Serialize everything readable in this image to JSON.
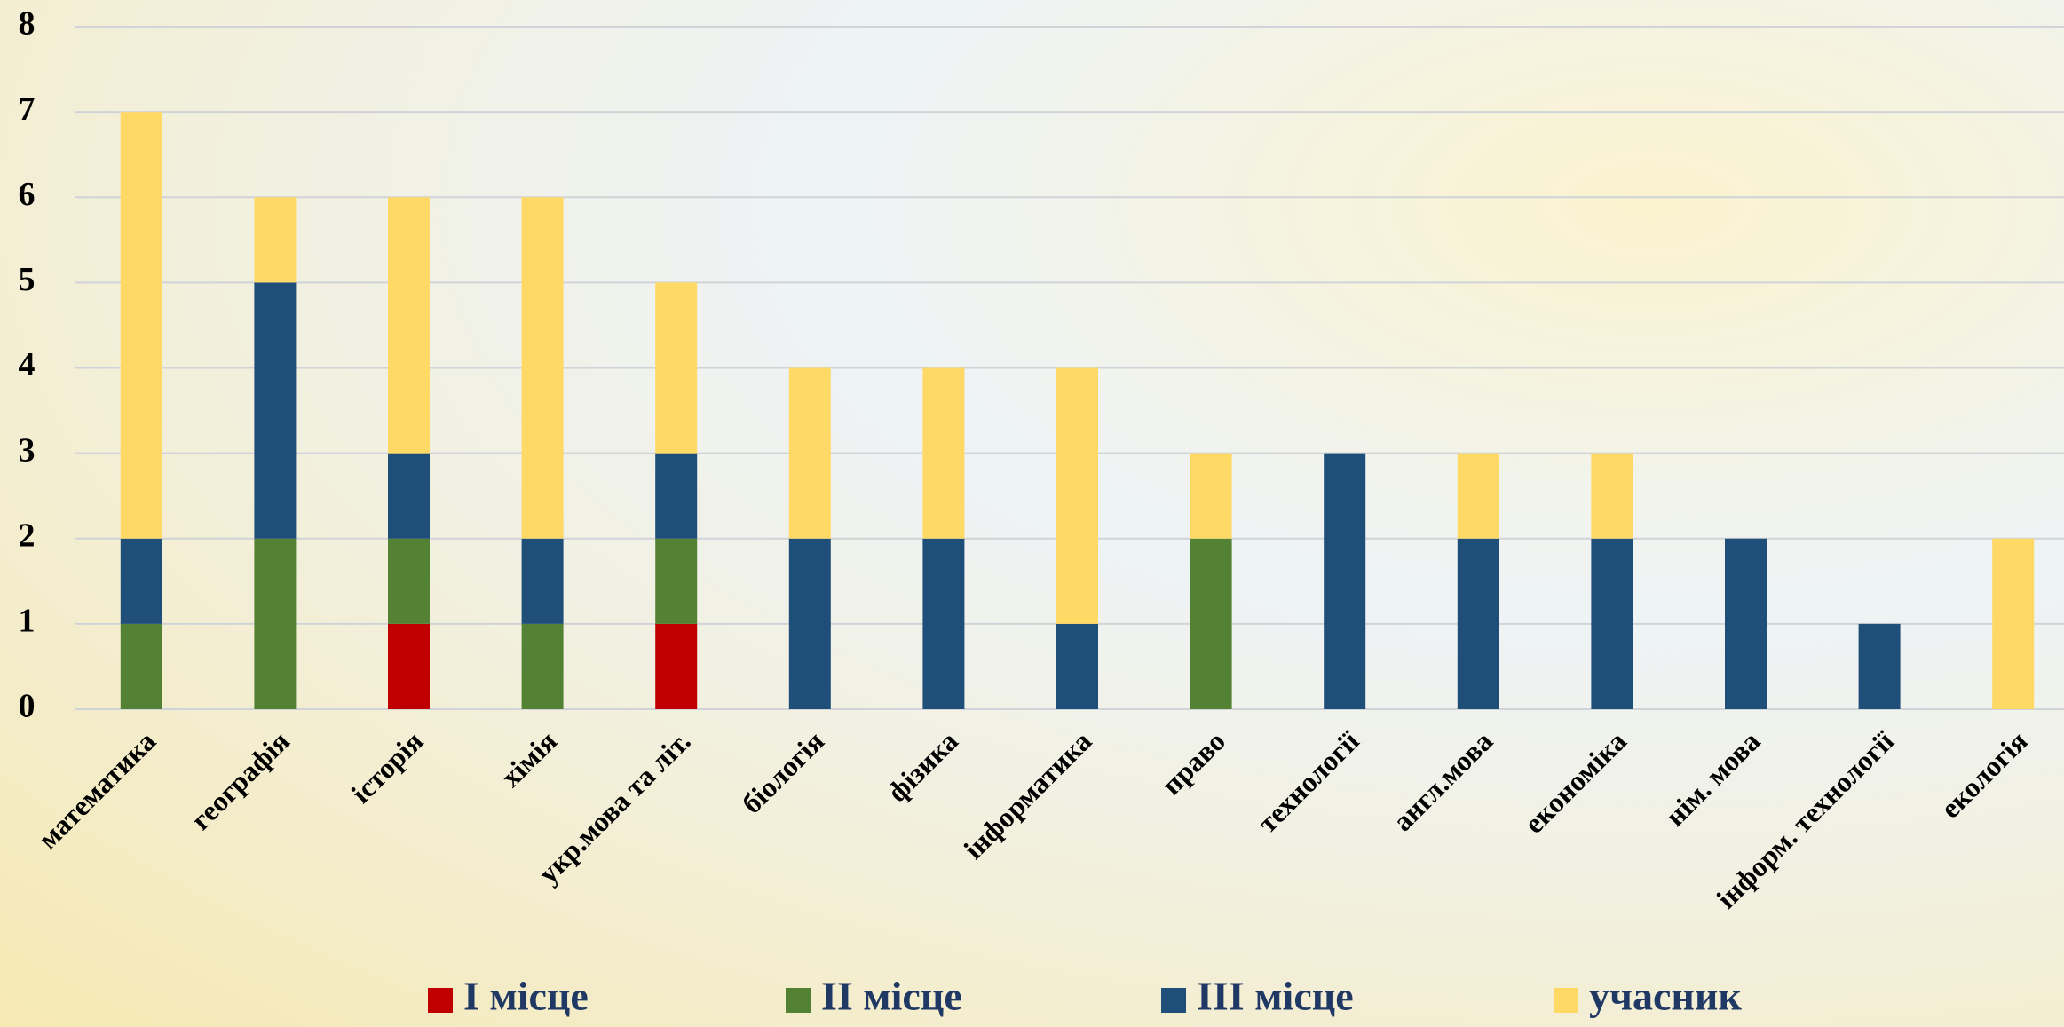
{
  "chart_data": {
    "type": "stacked_bar",
    "categories": [
      "математика",
      "географія",
      "історія",
      "хімія",
      "укр.мова та літ.",
      "біологія",
      "фізика",
      "інформатика",
      "право",
      "технології",
      "англ.мова",
      "економіка",
      "нім. мова",
      "інформ. технології",
      "екологія"
    ],
    "series": [
      {
        "name": "І місце",
        "color": "#c00000",
        "values": [
          0,
          0,
          1,
          0,
          1,
          0,
          0,
          0,
          0,
          0,
          0,
          0,
          0,
          0,
          0
        ]
      },
      {
        "name": "ІІ місце",
        "color": "#548235",
        "values": [
          1,
          2,
          1,
          1,
          1,
          0,
          0,
          0,
          2,
          0,
          0,
          0,
          0,
          0,
          0
        ]
      },
      {
        "name": "ІІІ місце",
        "color": "#1f4e79",
        "values": [
          1,
          3,
          1,
          1,
          1,
          2,
          2,
          1,
          0,
          3,
          2,
          2,
          2,
          1,
          0
        ]
      },
      {
        "name": "учасник",
        "color": "#ffd966",
        "values": [
          5,
          1,
          3,
          4,
          2,
          2,
          2,
          3,
          1,
          0,
          1,
          1,
          0,
          0,
          2
        ]
      }
    ],
    "ylim": [
      0,
      8
    ],
    "yticks": [
      0,
      1,
      2,
      3,
      4,
      5,
      6,
      7,
      8
    ],
    "grid": true,
    "legend": "bottom"
  }
}
